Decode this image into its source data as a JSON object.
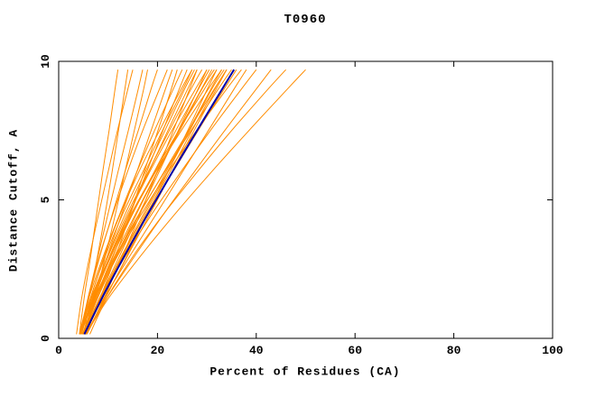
{
  "chart_data": {
    "type": "line",
    "title": "T0960",
    "xlabel": "Percent of Residues (CA)",
    "ylabel": "Distance Cutoff, A",
    "xlim": [
      0,
      100
    ],
    "ylim": [
      0,
      10
    ],
    "x_ticks": [
      0,
      20,
      40,
      60,
      80,
      100
    ],
    "y_ticks": [
      0,
      5,
      10
    ],
    "grid": false,
    "legend": null,
    "model_color": "#FF8C00",
    "reference_color": "#0000AA",
    "axis_color": "#000000",
    "background_color": "#FFFFFF",
    "y_levels": [
      0.15,
      1.5,
      3.0,
      4.5,
      6.0,
      7.5,
      9.0,
      9.7
    ],
    "model_curves_x": [
      [
        4.2,
        5.2,
        6.5,
        7.7,
        8.9,
        10.2,
        11.4,
        12.0
      ],
      [
        4.4,
        6.2,
        7.9,
        9.4,
        10.8,
        12.1,
        13.4,
        14.0
      ],
      [
        3.6,
        4.7,
        6.3,
        8.1,
        10.0,
        11.9,
        14.0,
        15.0
      ],
      [
        4.3,
        6.0,
        8.0,
        10.0,
        12.0,
        14.1,
        16.1,
        17.0
      ],
      [
        5.4,
        7.4,
        9.5,
        11.5,
        13.4,
        15.3,
        17.2,
        18.0
      ],
      [
        4.2,
        6.1,
        8.4,
        10.9,
        13.4,
        16.1,
        18.7,
        20.0
      ],
      [
        4.6,
        6.0,
        8.3,
        11.0,
        13.9,
        17.0,
        20.4,
        22.0
      ],
      [
        4.4,
        6.9,
        9.9,
        12.8,
        15.8,
        18.7,
        21.6,
        23.0
      ],
      [
        5.6,
        8.5,
        11.6,
        14.5,
        17.3,
        20.1,
        22.8,
        24.0
      ],
      [
        4.2,
        6.2,
        9.1,
        12.4,
        15.8,
        19.4,
        23.2,
        25.0
      ],
      [
        4.9,
        7.8,
        11.1,
        14.5,
        17.8,
        21.1,
        24.4,
        26.0
      ],
      [
        5.1,
        6.6,
        9.3,
        12.5,
        16.2,
        20.4,
        24.8,
        27.0
      ],
      [
        4.3,
        7.1,
        10.6,
        14.3,
        18.2,
        22.1,
        26.1,
        28.0
      ],
      [
        5.7,
        9.3,
        13.0,
        16.5,
        19.9,
        23.2,
        26.5,
        28.0
      ],
      [
        4.2,
        6.7,
        10.1,
        13.9,
        18.1,
        22.4,
        26.8,
        29.0
      ],
      [
        5.0,
        8.4,
        12.4,
        16.3,
        20.3,
        24.2,
        28.2,
        30.0
      ],
      [
        5.2,
        7.2,
        10.4,
        14.2,
        18.4,
        22.9,
        27.7,
        30.0
      ],
      [
        4.4,
        7.5,
        11.4,
        15.6,
        19.9,
        24.3,
        28.9,
        31.0
      ],
      [
        5.7,
        9.6,
        13.9,
        18.0,
        22.1,
        26.1,
        30.1,
        32.0
      ],
      [
        4.2,
        6.7,
        10.5,
        14.7,
        19.4,
        24.3,
        29.5,
        32.0
      ],
      [
        5.0,
        8.5,
        12.8,
        17.2,
        21.7,
        26.3,
        30.8,
        33.0
      ],
      [
        5.1,
        7.3,
        10.7,
        14.9,
        19.6,
        24.8,
        30.3,
        33.0
      ],
      [
        4.3,
        7.5,
        11.8,
        16.4,
        21.3,
        26.3,
        31.5,
        34.0
      ],
      [
        5.6,
        9.5,
        14.0,
        18.5,
        22.9,
        27.4,
        31.9,
        34.0
      ],
      [
        4.3,
        7.3,
        11.6,
        16.3,
        21.4,
        26.8,
        32.3,
        35.0
      ],
      [
        4.9,
        8.5,
        13.2,
        18.0,
        23.1,
        28.2,
        33.5,
        36.0
      ],
      [
        5.2,
        7.8,
        12.0,
        16.8,
        22.1,
        27.9,
        34.0,
        37.0
      ],
      [
        4.7,
        9.3,
        14.5,
        19.8,
        25.0,
        30.3,
        35.5,
        38.0
      ],
      [
        5.3,
        8.7,
        13.6,
        18.9,
        24.7,
        30.7,
        37.0,
        40.0
      ],
      [
        5.5,
        9.9,
        15.5,
        21.3,
        27.4,
        33.6,
        40.0,
        43.0
      ],
      [
        6.3,
        9.9,
        15.2,
        21.3,
        28.0,
        35.0,
        42.4,
        46.0
      ],
      [
        5.5,
        10.3,
        16.7,
        23.6,
        30.9,
        38.5,
        46.3,
        50.0
      ],
      [
        4.6,
        7.0,
        10.0,
        13.5,
        17.5,
        21.5,
        25.5,
        27.5
      ],
      [
        5.0,
        8.0,
        11.8,
        15.8,
        20.0,
        24.5,
        29.0,
        31.5
      ],
      [
        4.4,
        6.5,
        9.5,
        13.0,
        17.0,
        21.0,
        25.2,
        27.0
      ],
      [
        5.2,
        8.8,
        13.0,
        17.5,
        22.0,
        26.5,
        31.0,
        33.5
      ],
      [
        4.8,
        7.6,
        11.0,
        15.0,
        19.3,
        23.7,
        28.3,
        30.5
      ],
      [
        5.4,
        9.0,
        13.3,
        17.8,
        22.5,
        27.0,
        31.6,
        34.0
      ]
    ],
    "reference_curve_x": [
      5.2,
      8.9,
      13.4,
      18.1,
      23.0,
      28.0,
      33.1,
      35.5
    ]
  }
}
